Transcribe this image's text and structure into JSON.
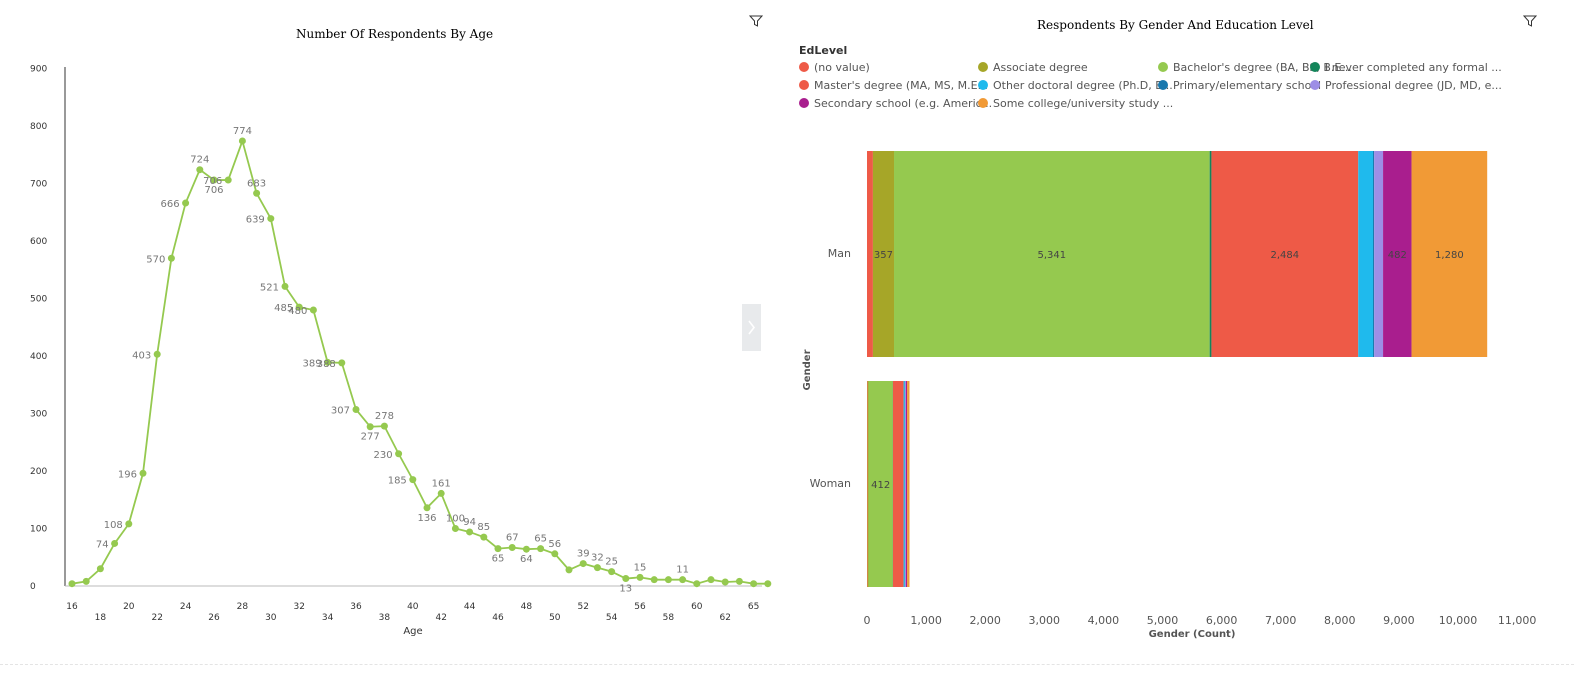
{
  "age_chart": {
    "title": "Number Of  Respondents By Age",
    "chart_data": {
      "type": "line",
      "title": "Number Of  Respondents By Age",
      "xlabel": "Age",
      "ylabel": "",
      "ylim": [
        0,
        900
      ],
      "y_ticks": [
        0,
        100,
        200,
        300,
        400,
        500,
        600,
        700,
        800,
        900
      ],
      "x_tick_labels": [
        "16",
        "18",
        "20",
        "22",
        "24",
        "26",
        "28",
        "30",
        "32",
        "34",
        "36",
        "38",
        "40",
        "42",
        "44",
        "46",
        "48",
        "50",
        "52",
        "54",
        "56",
        "58",
        "60",
        "62",
        "65"
      ],
      "x": [
        "16",
        "17",
        "18",
        "19",
        "20",
        "21",
        "22",
        "23",
        "24",
        "25",
        "26",
        "27",
        "28",
        "29",
        "30",
        "31",
        "32",
        "33",
        "34",
        "35",
        "36",
        "37",
        "38",
        "39",
        "40",
        "41",
        "42",
        "43",
        "44",
        "45",
        "46",
        "47",
        "48",
        "49",
        "50",
        "51",
        "52",
        "53",
        "54",
        "55",
        "56",
        "57",
        "58",
        "59",
        "60",
        "61",
        "62",
        "63",
        "65",
        "66"
      ],
      "values": [
        4,
        8,
        30,
        74,
        108,
        196,
        403,
        570,
        666,
        724,
        706,
        706,
        774,
        683,
        639,
        521,
        485,
        480,
        389,
        388,
        307,
        277,
        278,
        230,
        185,
        136,
        161,
        100,
        94,
        85,
        65,
        67,
        64,
        65,
        56,
        28,
        39,
        32,
        25,
        13,
        15,
        11,
        11,
        11,
        4,
        11,
        7,
        8,
        4,
        4
      ],
      "data_labels": [
        "",
        "",
        "",
        "74",
        "108",
        "196",
        "403",
        "570",
        "666",
        "724",
        "706",
        "706",
        "774",
        "683",
        "639",
        "521",
        "485",
        "480",
        "389",
        "388",
        "307",
        "277",
        "278",
        "230",
        "185",
        "136",
        "161",
        "100",
        "94",
        "85",
        "65",
        "67",
        "64",
        "65",
        "56",
        "",
        "39",
        "32",
        "25",
        "13",
        "15",
        "",
        "",
        "11",
        "",
        "",
        "",
        "",
        "",
        ""
      ],
      "grid": false,
      "line_color": "#95c94f"
    }
  },
  "edu_chart": {
    "title": "Respondents By Gender And Education Level",
    "legend_title": "EdLevel",
    "legend": [
      {
        "label": "(no value)",
        "color": "#ee5a47"
      },
      {
        "label": "Associate degree",
        "color": "#a6a628"
      },
      {
        "label": "Bachelor's degree (BA, BS, B.E...",
        "color": "#95c94f"
      },
      {
        "label": "I never completed any formal ...",
        "color": "#13855a"
      },
      {
        "label": "Master's degree (MA, MS, M.E...",
        "color": "#ee5a47"
      },
      {
        "label": "Other doctoral degree (Ph.D, E...",
        "color": "#1fbaed"
      },
      {
        "label": "Primary/elementary school",
        "color": "#1978ad"
      },
      {
        "label": "Professional degree (JD, MD, e...",
        "color": "#9d8ee6"
      },
      {
        "label": "Secondary school (e.g. Americ...",
        "color": "#a91e8e"
      },
      {
        "label": "Some college/university study ...",
        "color": "#f19a36"
      }
    ],
    "chart_data": {
      "type": "bar",
      "orientation": "horizontal",
      "stacked": true,
      "title": "Respondents By Gender And Education Level",
      "xlabel": "Gender (Count)",
      "ylabel": "Gender",
      "xlim": [
        0,
        11000
      ],
      "x_ticks": [
        "0",
        "1,000",
        "2,000",
        "3,000",
        "4,000",
        "5,000",
        "6,000",
        "7,000",
        "8,000",
        "9,000",
        "10,000",
        "11,000"
      ],
      "categories": [
        "Man",
        "Woman"
      ],
      "series": [
        {
          "name": "(no value)",
          "values": [
            100,
            10
          ],
          "color": "#ee5a47"
        },
        {
          "name": "Associate degree",
          "values": [
            357,
            15
          ],
          "color": "#a6a628"
        },
        {
          "name": "Bachelor's degree (BA, BS, B.E...",
          "values": [
            5341,
            412
          ],
          "color": "#95c94f"
        },
        {
          "name": "I never completed any formal ...",
          "values": [
            30,
            2
          ],
          "color": "#13855a"
        },
        {
          "name": "Master's degree (MA, MS, M.E...",
          "values": [
            2484,
            180
          ],
          "color": "#ee5a47"
        },
        {
          "name": "Other doctoral degree (Ph.D, E...",
          "values": [
            250,
            20
          ],
          "color": "#1fbaed"
        },
        {
          "name": "Primary/elementary school",
          "values": [
            20,
            5
          ],
          "color": "#1978ad"
        },
        {
          "name": "Professional degree (JD, MD, e...",
          "values": [
            150,
            15
          ],
          "color": "#9d8ee6"
        },
        {
          "name": "Secondary school (e.g. Americ...",
          "values": [
            482,
            20
          ],
          "color": "#a91e8e"
        },
        {
          "name": "Some college/university study ...",
          "values": [
            1280,
            40
          ],
          "color": "#f19a36"
        }
      ],
      "data_labels": {
        "Man": {
          "Associate degree": "357",
          "Bachelor's degree (BA, BS, B.E...": "5,341",
          "Master's degree (MA, MS, M.E...": "2,484",
          "Secondary school (e.g. Americ...": "482",
          "Some college/university study ...": "1,280"
        },
        "Woman": {
          "Bachelor's degree (BA, BS, B.E...": "412"
        }
      },
      "grid": false
    }
  }
}
